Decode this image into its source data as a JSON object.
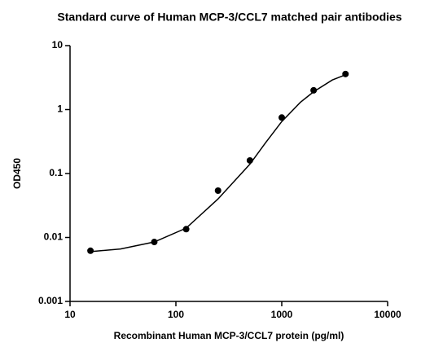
{
  "chart_data": {
    "type": "scatter",
    "title": "Standard curve of Human MCP-3/CCL7 matched pair antibodies",
    "x_label": "Recombinant Human MCP-3/CCL7 protein (pg/ml)",
    "y_label": "OD450",
    "xscale": "log",
    "yscale": "log",
    "xlim": [
      10,
      10000
    ],
    "ylim": [
      0.001,
      10
    ],
    "xticks": [
      10,
      100,
      1000,
      10000
    ],
    "yticks": [
      0.001,
      0.01,
      0.1,
      1,
      10
    ],
    "grid": false,
    "series": [
      {
        "color": "#000000",
        "mode": "markers",
        "x": [
          15.6,
          62.5,
          125,
          250,
          500,
          1000,
          2000,
          4000
        ],
        "values": [
          0.0062,
          0.0085,
          0.0135,
          0.054,
          0.16,
          0.75,
          2.0,
          3.6
        ]
      },
      {
        "color": "#000000",
        "mode": "line",
        "x": [
          15.6,
          30,
          62.5,
          125,
          250,
          500,
          700,
          1000,
          1500,
          2000,
          3000,
          4000
        ],
        "values": [
          0.006,
          0.0066,
          0.0085,
          0.014,
          0.04,
          0.14,
          0.3,
          0.65,
          1.3,
          1.9,
          2.9,
          3.5
        ]
      }
    ]
  }
}
